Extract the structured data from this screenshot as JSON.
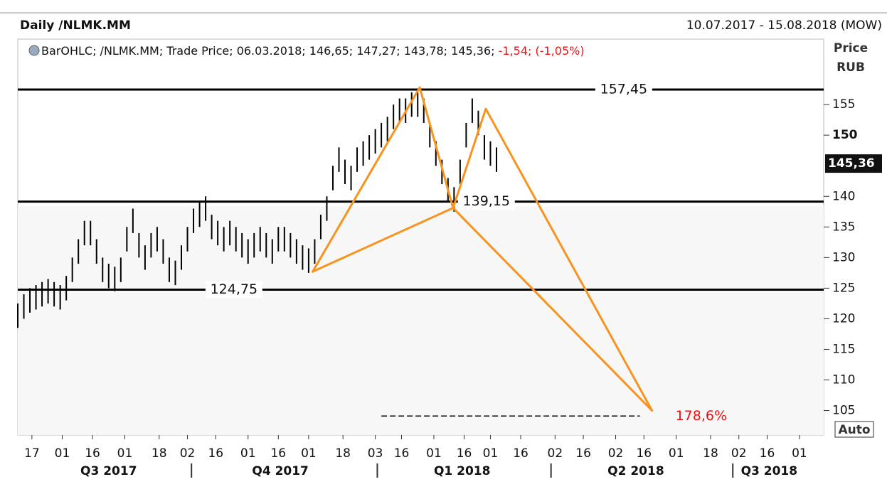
{
  "chart_data": {
    "type": "ohlc",
    "title": "Daily /NLMK.MM",
    "date_range": "10.07.2017 - 15.08.2018 (MOW)",
    "info": "BarOHLC; /NLMK.MM; Trade Price; 06.03.2018; 146,65; 147,27; 143,78; 145,36;",
    "info_change": "-1,54; (-1,05%)",
    "axis_title": "Price",
    "axis_unit": "RUB",
    "last_price": {
      "value": 145.36,
      "label": "145,36"
    },
    "scale_mode": "Auto",
    "color": "#000000",
    "xlim": [
      0,
      399
    ],
    "ylim": [
      101,
      165.7
    ],
    "x": [
      0,
      3,
      6,
      9,
      12,
      15,
      18,
      21,
      24,
      27,
      30,
      33,
      36,
      39,
      42,
      45,
      48,
      51,
      54,
      57,
      60,
      63,
      66,
      69,
      72,
      75,
      78,
      81,
      84,
      87,
      90,
      93,
      96,
      99,
      102,
      105,
      108,
      111,
      114,
      117,
      120,
      123,
      126,
      129,
      132,
      135,
      138,
      141,
      144,
      147,
      150,
      153,
      156,
      159,
      162,
      165,
      168,
      171,
      174,
      177,
      180,
      183,
      186,
      189,
      192,
      195,
      198,
      201,
      204,
      207,
      210,
      213,
      216,
      219,
      222,
      225,
      228,
      231,
      234,
      237
    ],
    "high": [
      122.5,
      124,
      125,
      125.5,
      126,
      126.5,
      126,
      125.5,
      127,
      130,
      133,
      136,
      136,
      133,
      130,
      129,
      128.5,
      130,
      135,
      138,
      134,
      132,
      134,
      135,
      133,
      130,
      129.5,
      132,
      135,
      138,
      139,
      140,
      137,
      136,
      135,
      136,
      135,
      134,
      133,
      134,
      135,
      134,
      133,
      135,
      135,
      134,
      133,
      132,
      131.5,
      133,
      137,
      140,
      145,
      148,
      146,
      145,
      148,
      149,
      150,
      151,
      152,
      153,
      155,
      156,
      156,
      157,
      157,
      156,
      152,
      149,
      146,
      143,
      141.5,
      146,
      152,
      156,
      154,
      150,
      149,
      148
    ],
    "low": [
      118.5,
      120,
      121,
      121.5,
      122,
      122.5,
      122,
      121.5,
      123,
      126,
      129,
      132,
      132,
      129,
      126,
      125,
      124.5,
      126,
      131,
      134,
      130,
      128,
      130,
      131,
      129,
      126,
      125.5,
      128,
      131,
      134,
      135,
      136,
      133,
      132,
      131,
      132,
      131,
      130,
      129,
      130,
      131,
      130,
      129,
      131,
      131,
      130,
      129,
      128,
      127.5,
      129,
      133,
      136,
      141,
      144,
      142,
      141,
      144,
      145,
      146,
      147,
      148,
      149,
      151,
      152,
      152,
      153,
      153,
      152,
      148,
      145,
      142,
      139,
      137.5,
      142,
      148,
      152,
      150,
      146,
      145,
      144
    ],
    "yticks": [
      105,
      110,
      115,
      120,
      125,
      130,
      135,
      140,
      {
        "value": 150,
        "label": "150"
      },
      155
    ],
    "xticks": [
      {
        "value": 7,
        "label": "17"
      },
      {
        "value": 22,
        "label": "01"
      },
      {
        "value": 37,
        "label": "16"
      },
      {
        "value": 53,
        "label": "01"
      },
      {
        "value": 70,
        "label": "18"
      },
      {
        "value": 84,
        "label": "02"
      },
      {
        "value": 98,
        "label": "16"
      },
      {
        "value": 114,
        "label": "01"
      },
      {
        "value": 129,
        "label": "16"
      },
      {
        "value": 144,
        "label": "01"
      },
      {
        "value": 161,
        "label": "18"
      },
      {
        "value": 177,
        "label": "03"
      },
      {
        "value": 190,
        "label": "16"
      },
      {
        "value": 206,
        "label": "01"
      },
      {
        "value": 221,
        "label": "16"
      },
      {
        "value": 234,
        "label": "01"
      },
      {
        "value": 249,
        "label": "16"
      },
      {
        "value": 266,
        "label": "02"
      },
      {
        "value": 280,
        "label": "16"
      },
      {
        "value": 296,
        "label": "02"
      },
      {
        "value": 310,
        "label": "16"
      },
      {
        "value": 326,
        "label": "01"
      },
      {
        "value": 343,
        "label": "18"
      },
      {
        "value": 357,
        "label": "02"
      },
      {
        "value": 371,
        "label": "16"
      },
      {
        "value": 387,
        "label": "01"
      }
    ],
    "quarters": [
      {
        "value": 45,
        "label": "Q3 2017"
      },
      {
        "value": 130,
        "label": "Q4 2017"
      },
      {
        "value": 220,
        "label": "Q1 2018"
      },
      {
        "value": 306,
        "label": "Q2 2018"
      },
      {
        "value": 372,
        "label": "Q3 2018"
      }
    ],
    "quarter_breaks": [
      86,
      178,
      264,
      354
    ],
    "levels": [
      {
        "value": 157.45,
        "label": "157,45",
        "at": 300
      },
      {
        "value": 139.15,
        "label": "139,15",
        "at": 232
      },
      {
        "value": 124.75,
        "label": "124,75",
        "at": 107
      }
    ],
    "pattern": {
      "color": "#f7931e",
      "x": [
        146,
        199,
        215.5,
        231.7,
        314
      ],
      "y": [
        127.7,
        157.8,
        138.1,
        154.3,
        105
      ]
    },
    "projection": {
      "x": [
        180,
        308
      ],
      "y": 104.1,
      "label": "178,6%",
      "label_color": "#ee1111"
    }
  }
}
